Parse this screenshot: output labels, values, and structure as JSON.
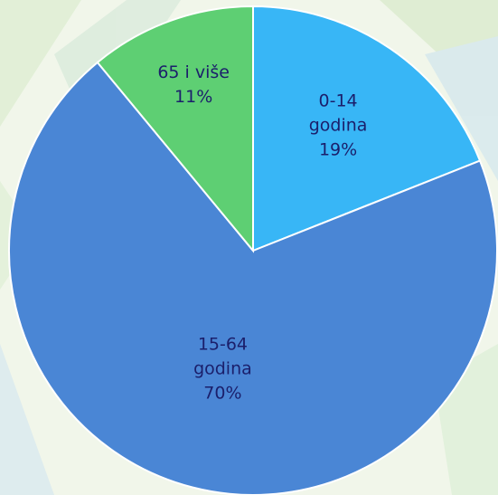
{
  "chart_data": {
    "type": "pie",
    "categories": [
      "0-14 godina",
      "15-64 godina",
      "65 i više"
    ],
    "values": [
      19,
      70,
      11
    ],
    "value_labels": [
      "19%",
      "70%",
      "11%"
    ],
    "colors": [
      "#38b6f6",
      "#4a86d5",
      "#5ecf73"
    ]
  }
}
